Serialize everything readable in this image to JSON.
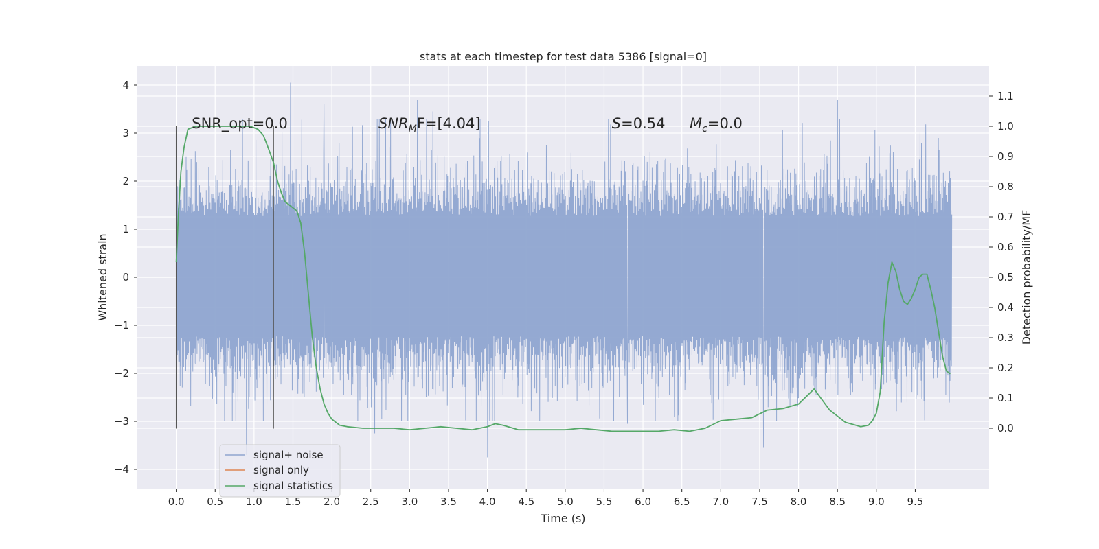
{
  "chart_data": {
    "type": "line",
    "title": "stats at each timestep for test data 5386 [signal=0]",
    "xlabel": "Time (s)",
    "ylabel_left": "Whitened strain",
    "ylabel_right": "Detection probability/MF",
    "xlim": [
      -0.5,
      10.45
    ],
    "ylim_left": [
      -4.4,
      4.4
    ],
    "ylim_right": [
      -0.2,
      1.2
    ],
    "x_ticks": [
      "0.0",
      "0.5",
      "1.0",
      "1.5",
      "2.0",
      "2.5",
      "3.0",
      "3.5",
      "4.0",
      "4.5",
      "5.0",
      "5.5",
      "6.0",
      "6.5",
      "7.0",
      "7.5",
      "8.0",
      "8.5",
      "9.0",
      "9.5"
    ],
    "y_left_ticks": [
      "−4",
      "−3",
      "−2",
      "−1",
      "0",
      "1",
      "2",
      "3",
      "4"
    ],
    "y_right_ticks": [
      "0.0",
      "0.1",
      "0.2",
      "0.3",
      "0.4",
      "0.5",
      "0.6",
      "0.7",
      "0.8",
      "0.9",
      "1.0",
      "1.1"
    ],
    "grid": true,
    "legend_position": "lower-left",
    "annotations": [
      {
        "pre": "SNR_opt=0.0",
        "italic": "",
        "sub": "",
        "post": "",
        "x": 0.2,
        "y": 3.1
      },
      {
        "pre": "",
        "italic": "SNR",
        "sub": "M",
        "post": "F=[4.04]",
        "x": 2.6,
        "y": 3.1
      },
      {
        "pre": "",
        "italic": "S",
        "sub": "",
        "post": "=0.54",
        "x": 5.6,
        "y": 3.1
      },
      {
        "pre": "",
        "italic": "M",
        "sub": "c",
        "post": "=0.0",
        "x": 6.6,
        "y": 3.1
      }
    ],
    "vlines": [
      {
        "x": 0.0,
        "y0": -3.15,
        "y1": 3.15
      },
      {
        "x": 1.25,
        "y0": -3.15,
        "y1": 3.15
      }
    ],
    "series": [
      {
        "name": "signal+ noise",
        "axis": "left",
        "style": "noise",
        "color": "#8fa5d0",
        "x_range": [
          0.0,
          9.97
        ],
        "core_envelope": [
          -1.25,
          1.3
        ],
        "approx_extremes": [
          {
            "x": 1.47,
            "y": 4.05
          },
          {
            "x": 1.9,
            "y": 3.6
          },
          {
            "x": 3.1,
            "y": 3.7
          },
          {
            "x": 3.3,
            "y": 3.45
          },
          {
            "x": 8.5,
            "y": 3.7
          },
          {
            "x": 9.8,
            "y": 2.9
          },
          {
            "x": 0.9,
            "y": -3.7
          },
          {
            "x": 4.0,
            "y": -3.75
          },
          {
            "x": 7.55,
            "y": -3.55
          },
          {
            "x": 2.55,
            "y": -3.25
          },
          {
            "x": 5.8,
            "y": -3.05
          }
        ]
      },
      {
        "name": "signal only",
        "axis": "left",
        "style": "line",
        "color": "#dd8452",
        "x": [],
        "y": []
      },
      {
        "name": "signal statistics",
        "axis": "right",
        "style": "line",
        "color": "#55a868",
        "x": [
          0.0,
          0.03,
          0.06,
          0.1,
          0.15,
          0.25,
          0.4,
          0.6,
          0.8,
          0.95,
          1.05,
          1.12,
          1.18,
          1.25,
          1.3,
          1.35,
          1.4,
          1.45,
          1.5,
          1.55,
          1.6,
          1.65,
          1.7,
          1.75,
          1.8,
          1.85,
          1.9,
          1.95,
          2.0,
          2.05,
          2.1,
          2.2,
          2.4,
          2.6,
          2.8,
          3.0,
          3.2,
          3.4,
          3.6,
          3.8,
          4.0,
          4.1,
          4.2,
          4.4,
          4.6,
          4.8,
          5.0,
          5.2,
          5.4,
          5.6,
          5.8,
          6.0,
          6.2,
          6.4,
          6.6,
          6.8,
          7.0,
          7.2,
          7.4,
          7.6,
          7.8,
          8.0,
          8.2,
          8.4,
          8.6,
          8.8,
          8.9,
          8.95,
          9.0,
          9.05,
          9.1,
          9.15,
          9.2,
          9.25,
          9.3,
          9.35,
          9.4,
          9.45,
          9.5,
          9.55,
          9.6,
          9.65,
          9.7,
          9.75,
          9.8,
          9.85,
          9.9,
          9.95
        ],
        "y": [
          0.55,
          0.72,
          0.85,
          0.93,
          0.99,
          1.0,
          1.0,
          1.0,
          1.0,
          1.0,
          0.99,
          0.97,
          0.93,
          0.88,
          0.82,
          0.78,
          0.75,
          0.74,
          0.73,
          0.72,
          0.68,
          0.58,
          0.44,
          0.3,
          0.2,
          0.13,
          0.08,
          0.05,
          0.03,
          0.02,
          0.01,
          0.005,
          0.0,
          0.0,
          0.0,
          -0.005,
          0.0,
          0.005,
          0.0,
          -0.005,
          0.005,
          0.015,
          0.01,
          -0.005,
          -0.005,
          -0.005,
          -0.005,
          0.0,
          -0.005,
          -0.01,
          -0.01,
          -0.01,
          -0.01,
          -0.005,
          -0.01,
          0.0,
          0.025,
          0.03,
          0.035,
          0.06,
          0.065,
          0.08,
          0.13,
          0.06,
          0.02,
          0.005,
          0.01,
          0.025,
          0.05,
          0.12,
          0.35,
          0.48,
          0.55,
          0.52,
          0.46,
          0.42,
          0.41,
          0.43,
          0.46,
          0.5,
          0.51,
          0.51,
          0.46,
          0.4,
          0.32,
          0.24,
          0.19,
          0.18
        ]
      }
    ]
  }
}
